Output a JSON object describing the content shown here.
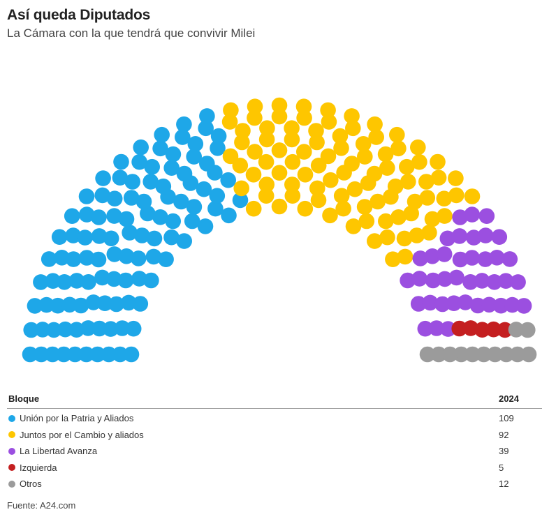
{
  "header": {
    "title": "Así queda Diputados",
    "subtitle": "La Cámara con la que tendrá que convivir Milei"
  },
  "table": {
    "col_bloque": "Bloque",
    "col_year": "2024",
    "rows": [
      {
        "label": "Unión por la Patria y Aliados",
        "value": "109",
        "color": "#1ea7e8"
      },
      {
        "label": "Juntos por el Cambio y aliados",
        "value": "92",
        "color": "#fec600"
      },
      {
        "label": "La Libertad Avanza",
        "value": "39",
        "color": "#9b4fe0"
      },
      {
        "label": "Izquierda",
        "value": "5",
        "color": "#c41f20"
      },
      {
        "label": "Otros",
        "value": "12",
        "color": "#9b9b9b"
      }
    ]
  },
  "source": "Fuente: A24.com",
  "chart_data": {
    "type": "parliament",
    "total_seats": 257,
    "series": [
      {
        "name": "Unión por la Patria y Aliados",
        "value": 109,
        "color": "#1ea7e8"
      },
      {
        "name": "Juntos por el Cambio y aliados",
        "value": 92,
        "color": "#fec600"
      },
      {
        "name": "La Libertad Avanza",
        "value": 39,
        "color": "#9b4fe0"
      },
      {
        "name": "Izquierda",
        "value": 5,
        "color": "#c41f20"
      },
      {
        "name": "Otros",
        "value": 12,
        "color": "#9b9b9b"
      }
    ]
  }
}
